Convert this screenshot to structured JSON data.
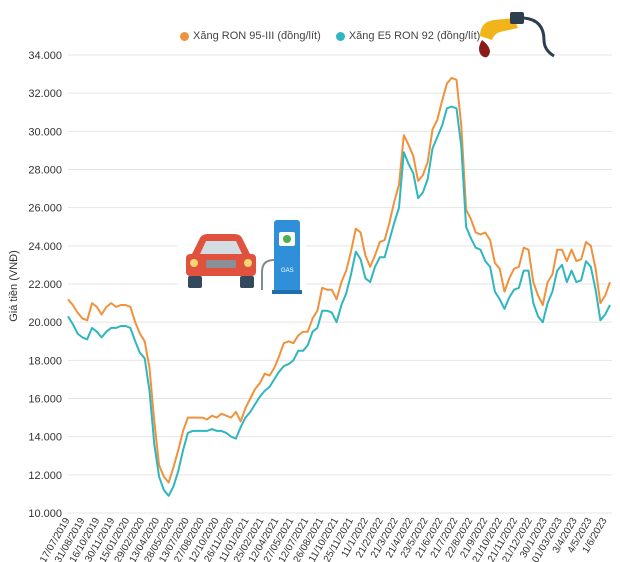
{
  "chart_data": {
    "type": "line",
    "ylabel": "Giá tiền (VNĐ)",
    "ylim": [
      10000,
      34000
    ],
    "yticks": [
      10000,
      12000,
      14000,
      16000,
      18000,
      20000,
      22000,
      24000,
      26000,
      28000,
      30000,
      32000,
      34000
    ],
    "ytick_labels": [
      "10.000",
      "12.000",
      "14.000",
      "16.000",
      "18.000",
      "20.000",
      "22.000",
      "24.000",
      "26.000",
      "28.000",
      "30.000",
      "32.000",
      "34.000"
    ],
    "grid": "horizontal",
    "legend_position": "top",
    "x_tick_labels": [
      "17/07/2019",
      "31/08/2019",
      "16/10/2019",
      "30/11/2019",
      "15/01/2020",
      "29/02/2020",
      "13/04/2020",
      "28/05/2020",
      "13/07/2020",
      "27/08/2020",
      "12/10/2020",
      "26/11/2020",
      "11/01/2021",
      "25/02/2021",
      "12/04/2021",
      "27/05/2021",
      "12/07/2021",
      "26/08/2021",
      "11/10/2021",
      "25/11/2021",
      "11/1/2022",
      "21/2/2022",
      "21/3/2022",
      "21/4/2022",
      "23/5/2022",
      "21/6/2022",
      "21/7/2022",
      "22/8/2022",
      "21/9/2022",
      "21/10/2022",
      "21/11/2022",
      "21/12/2022",
      "30/1/2023",
      "01/03/2023",
      "3/4/2023",
      "4/5/2023",
      "1/6/2023"
    ],
    "series": [
      {
        "name": "Xăng RON 95-III (đồng/lít)",
        "color": "#f0913c",
        "values": [
          21200,
          20900,
          20500,
          20200,
          20100,
          21000,
          20800,
          20400,
          20800,
          21000,
          20800,
          20900,
          20900,
          20800,
          20000,
          19400,
          19000,
          17600,
          14800,
          12500,
          11900,
          11600,
          12400,
          13300,
          14300,
          15000,
          15000,
          15000,
          15000,
          14900,
          15100,
          15000,
          15200,
          15100,
          15000,
          15300,
          14800,
          15500,
          16000,
          16500,
          16800,
          17300,
          17200,
          17600,
          18200,
          18900,
          19000,
          18900,
          19300,
          19500,
          19500,
          20200,
          20600,
          21800,
          21700,
          21700,
          21200,
          22100,
          22700,
          23700,
          24900,
          24700,
          23500,
          22900,
          23500,
          24200,
          24300,
          25200,
          26300,
          27200,
          29800,
          29300,
          28700,
          27400,
          27700,
          28400,
          30100,
          30600,
          31600,
          32500,
          32800,
          32700,
          30300,
          25900,
          25400,
          24700,
          24600,
          24700,
          24300,
          23100,
          22800,
          21600,
          22300,
          22800,
          22900,
          23900,
          23800,
          22100,
          21400,
          20900,
          22100,
          22500,
          23800,
          23800,
          23200,
          23800,
          23200,
          23300,
          24200,
          24000,
          22800,
          21000,
          21400,
          22100
        ]
      },
      {
        "name": "Xăng E5 RON 92 (đồng/lít)",
        "color": "#2fb6bf",
        "values": [
          20300,
          19900,
          19400,
          19200,
          19100,
          19700,
          19500,
          19200,
          19500,
          19700,
          19700,
          19800,
          19800,
          19700,
          19000,
          18400,
          18100,
          16400,
          13600,
          11900,
          11200,
          10900,
          11400,
          12200,
          13300,
          14200,
          14300,
          14300,
          14300,
          14300,
          14400,
          14300,
          14300,
          14200,
          14000,
          13900,
          14500,
          15000,
          15300,
          15700,
          16100,
          16400,
          16600,
          17000,
          17400,
          17700,
          17800,
          18000,
          18500,
          18500,
          18800,
          19500,
          19700,
          20600,
          20600,
          20500,
          20000,
          20900,
          21500,
          22500,
          23700,
          23300,
          22300,
          22100,
          22900,
          23400,
          23400,
          24300,
          25200,
          26000,
          28900,
          28300,
          27800,
          26500,
          26800,
          27500,
          29100,
          29700,
          30300,
          31200,
          31300,
          31200,
          29200,
          25000,
          24400,
          23900,
          23800,
          23200,
          22900,
          21600,
          21200,
          20700,
          21300,
          21700,
          21800,
          22700,
          22700,
          21000,
          20300,
          20000,
          21000,
          21600,
          22700,
          23000,
          22100,
          22700,
          22100,
          22200,
          23200,
          22900,
          21700,
          20100,
          20400,
          20900
        ]
      }
    ]
  }
}
